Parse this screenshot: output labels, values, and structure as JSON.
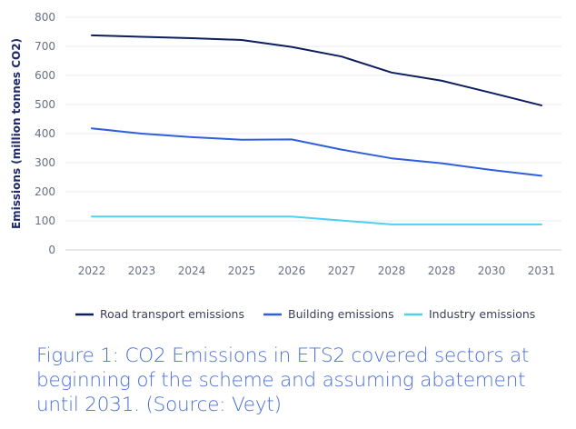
{
  "chart_data": {
    "type": "line",
    "title": "",
    "xlabel": "",
    "ylabel": "Emissions (million tonnes CO2)",
    "ylim": [
      0,
      800
    ],
    "yticks": [
      0,
      100,
      200,
      300,
      400,
      500,
      600,
      700,
      800
    ],
    "categories": [
      "2022",
      "2023",
      "2024",
      "2025",
      "2026",
      "2027",
      "2028",
      "2028",
      "2030",
      "2031"
    ],
    "grid": true,
    "legend_position": "bottom",
    "series": [
      {
        "name": "Road transport emissions",
        "color": "#0d1f5c",
        "values": [
          738,
          733,
          728,
          722,
          698,
          665,
          610,
          582,
          540,
          497
        ]
      },
      {
        "name": "Building emissions",
        "color": "#2f5fe0",
        "values": [
          418,
          400,
          388,
          379,
          380,
          345,
          315,
          298,
          275,
          255
        ]
      },
      {
        "name": "Industry emissions",
        "color": "#4fd0f0",
        "values": [
          115,
          115,
          115,
          115,
          115,
          101,
          88,
          88,
          88,
          88
        ]
      }
    ]
  },
  "caption": "Figure 1: CO2 Emissions in ETS2 covered sectors at beginning of the scheme and assuming abatement until 2031. (Source: Veyt)"
}
